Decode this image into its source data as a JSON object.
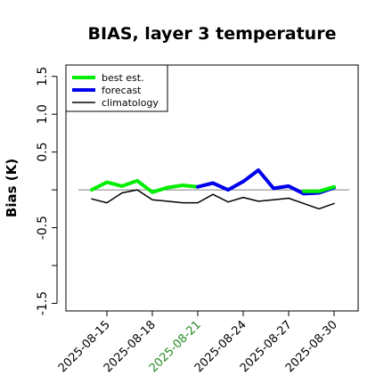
{
  "chart_data": {
    "type": "line",
    "title": "BIAS, layer 3 temperature",
    "xlabel": "",
    "ylabel": "Bias (K)",
    "ylim": [
      -1.6,
      1.65
    ],
    "yticks": [
      -1.5,
      -0.5,
      0.5,
      1.0,
      1.5
    ],
    "ytick_labels": [
      "-1.5",
      "-0.5",
      "0.5",
      "1.0",
      "1.5"
    ],
    "xticks": [
      "2025-08-15",
      "2025-08-18",
      "2025-08-21",
      "2025-08-24",
      "2025-08-27",
      "2025-08-30"
    ],
    "highlight_tick": "2025-08-21",
    "highlight_color": "#228b22",
    "reference_line": 0,
    "legend_position": "top-left",
    "grid": false,
    "series": [
      {
        "name": "best est.",
        "color": "#00ee00",
        "x": [
          "2025-08-14",
          "2025-08-15",
          "2025-08-16",
          "2025-08-17",
          "2025-08-18",
          "2025-08-19",
          "2025-08-20",
          "2025-08-21"
        ],
        "values": [
          0.0,
          0.1,
          0.05,
          0.12,
          -0.03,
          0.03,
          0.06,
          0.04
        ]
      },
      {
        "name": "forecast",
        "color": "#0000ee",
        "x": [
          "2025-08-21",
          "2025-08-22",
          "2025-08-23",
          "2025-08-24",
          "2025-08-25",
          "2025-08-26",
          "2025-08-27",
          "2025-08-28",
          "2025-08-29",
          "2025-08-30"
        ],
        "values": [
          0.04,
          0.09,
          0.0,
          0.11,
          0.26,
          0.02,
          0.05,
          -0.05,
          -0.04,
          0.03
        ]
      },
      {
        "name": "best est.",
        "color": "#00ee00",
        "x": [
          "2025-08-28",
          "2025-08-29",
          "2025-08-30"
        ],
        "values": [
          -0.02,
          -0.02,
          0.04
        ]
      },
      {
        "name": "climatology",
        "color": "#000000",
        "x": [
          "2025-08-14",
          "2025-08-15",
          "2025-08-16",
          "2025-08-17",
          "2025-08-18",
          "2025-08-19",
          "2025-08-20",
          "2025-08-21",
          "2025-08-22",
          "2025-08-23",
          "2025-08-24",
          "2025-08-25",
          "2025-08-26",
          "2025-08-27",
          "2025-08-28",
          "2025-08-29",
          "2025-08-30"
        ],
        "values": [
          -0.12,
          -0.17,
          -0.04,
          0.0,
          -0.13,
          -0.15,
          -0.17,
          -0.17,
          -0.06,
          -0.16,
          -0.1,
          -0.15,
          -0.13,
          -0.11,
          -0.18,
          -0.25,
          -0.18
        ]
      }
    ],
    "legend": [
      {
        "label": "best est.",
        "color": "#00ee00"
      },
      {
        "label": "forecast",
        "color": "#0000ee"
      },
      {
        "label": "climatology",
        "color": "#000000"
      }
    ]
  }
}
